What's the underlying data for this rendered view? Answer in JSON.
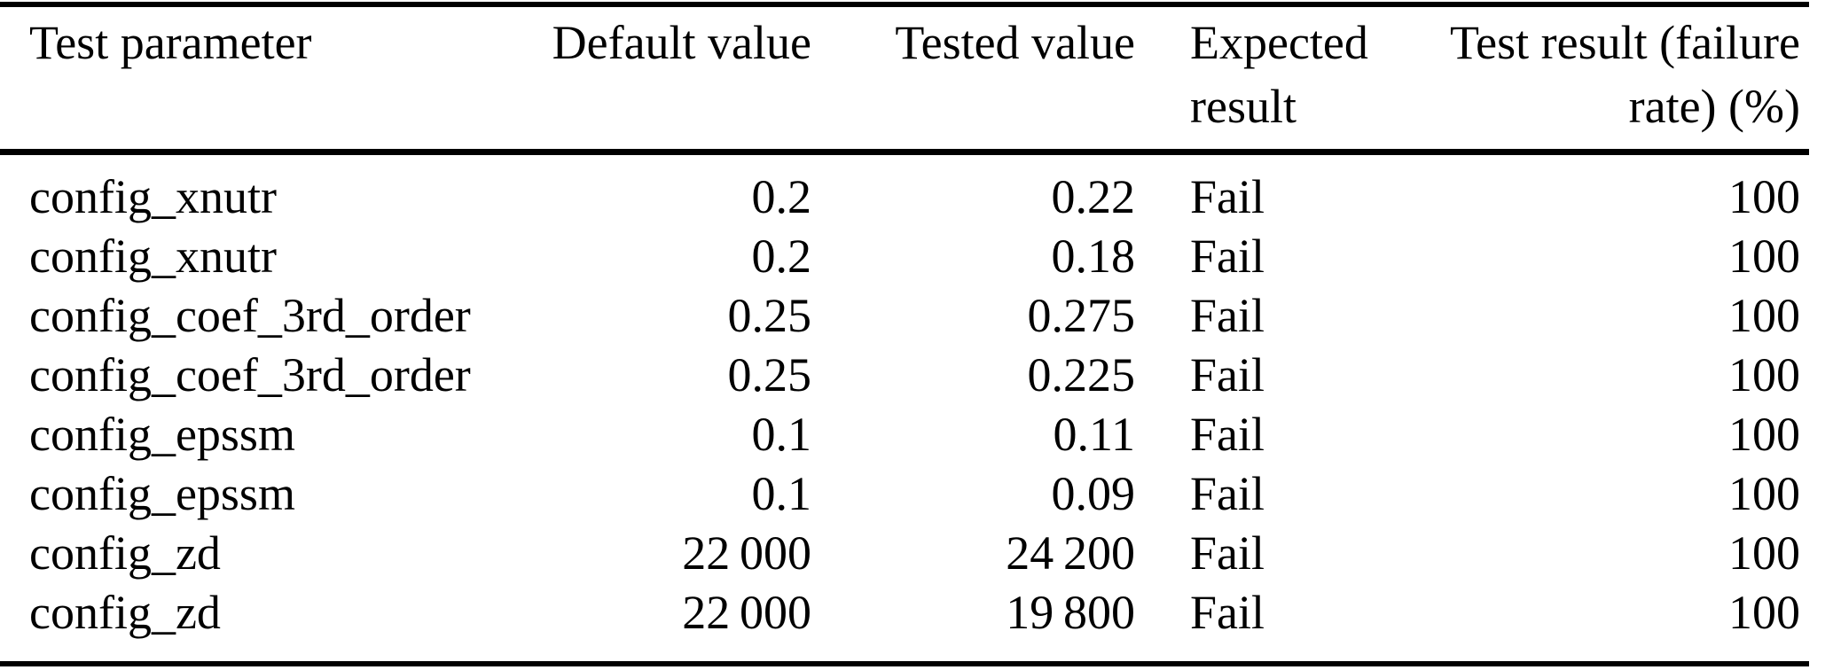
{
  "table": {
    "background": "#ffffff",
    "text_color": "#000000",
    "rule_color": "#000000",
    "columns": [
      {
        "label": "Test parameter",
        "align": "left"
      },
      {
        "label": "Default value",
        "align": "right"
      },
      {
        "label": "Tested value",
        "align": "right"
      },
      {
        "label": "Expected result",
        "align": "left"
      },
      {
        "label": "Test result (failure rate) (%)",
        "align": "right"
      }
    ],
    "rows": [
      [
        "config_xnutr",
        "0.2",
        "0.22",
        "Fail",
        "100"
      ],
      [
        "config_xnutr",
        "0.2",
        "0.18",
        "Fail",
        "100"
      ],
      [
        "config_coef_3rd_order",
        "0.25",
        "0.275",
        "Fail",
        "100"
      ],
      [
        "config_coef_3rd_order",
        "0.25",
        "0.225",
        "Fail",
        "100"
      ],
      [
        "config_epssm",
        "0.1",
        "0.11",
        "Fail",
        "100"
      ],
      [
        "config_epssm",
        "0.1",
        "0.09",
        "Fail",
        "100"
      ],
      [
        "config_zd",
        "22 000",
        "24 200",
        "Fail",
        "100"
      ],
      [
        "config_zd",
        "22 000",
        "19 800",
        "Fail",
        "100"
      ]
    ]
  }
}
